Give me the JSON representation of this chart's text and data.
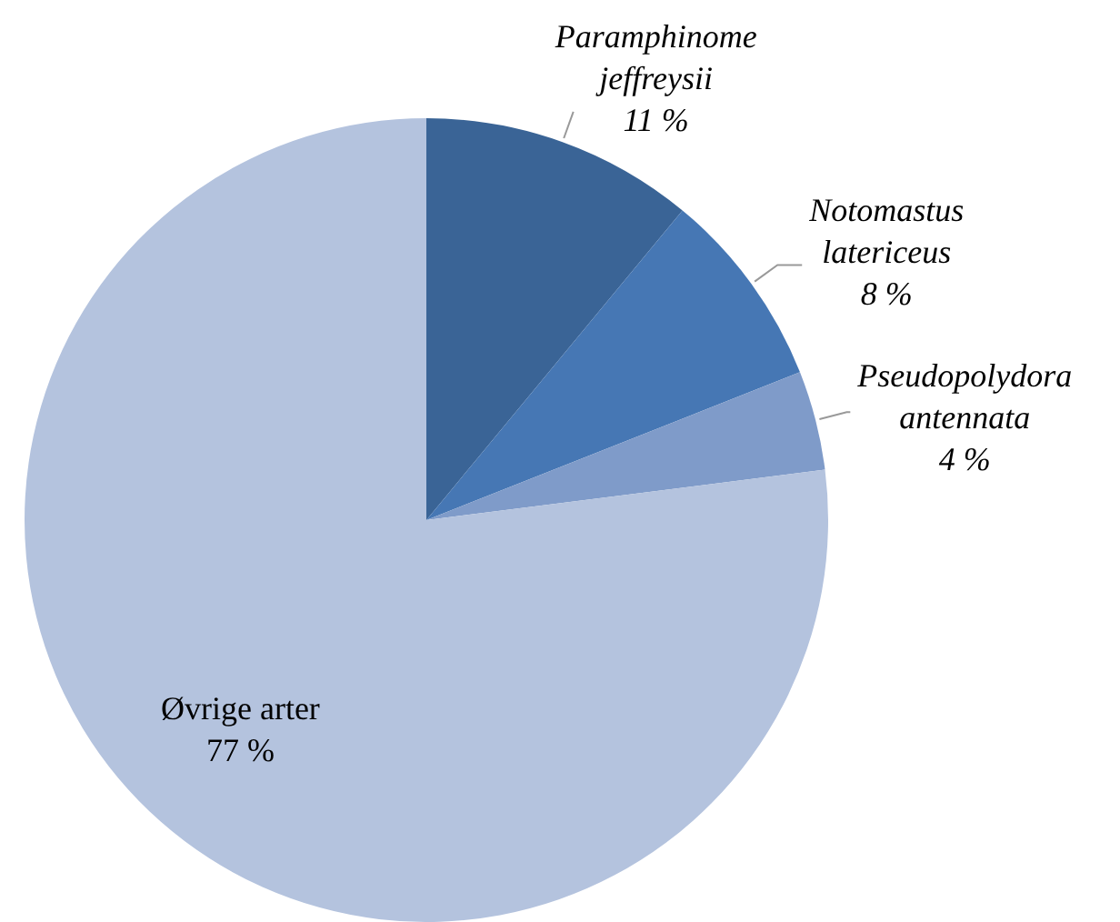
{
  "chart_data": {
    "type": "pie",
    "categories": [
      "Paramphinome jeffreysii",
      "Notomastus latericeus",
      "Pseudopolydora antennata",
      "Øvrige arter"
    ],
    "values": [
      11,
      8,
      4,
      77
    ],
    "colors": [
      "#3a6496",
      "#4677b4",
      "#7f9bc9",
      "#b4c3de"
    ],
    "value_labels": [
      "11 %",
      "8 %",
      "4 %",
      "77 %"
    ],
    "legend": false
  }
}
